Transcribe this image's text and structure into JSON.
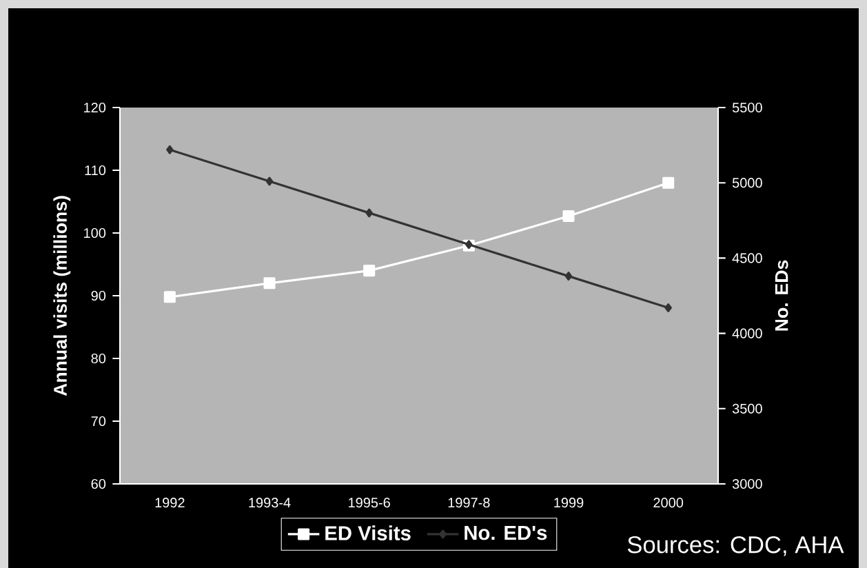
{
  "chart_data": {
    "type": "line",
    "categories": [
      "1992",
      "1993-4",
      "1995-6",
      "1997-8",
      "1999",
      "2000"
    ],
    "series": [
      {
        "name": "ED Visits",
        "color": "#ffffff",
        "marker": "square",
        "values": [
          89.8,
          92.0,
          94.0,
          98.0,
          102.7,
          108.0
        ]
      },
      {
        "name": "No. ED's",
        "color": "#333333",
        "marker": "diamond",
        "axis": "y2",
        "values": [
          5220,
          5010,
          4800,
          4590,
          4380,
          4170
        ]
      }
    ],
    "ylabel": "Annual visits (millions)",
    "y2label": "No. EDs",
    "ylim": [
      60,
      120
    ],
    "yticks": [
      60,
      70,
      80,
      90,
      100,
      110,
      120
    ],
    "y2lim": [
      3000,
      5500
    ],
    "y2ticks": [
      3000,
      3500,
      4000,
      4500,
      5000,
      5500
    ],
    "legend": "bottom",
    "annotations": [
      "Sources: CDC, AHA"
    ]
  }
}
